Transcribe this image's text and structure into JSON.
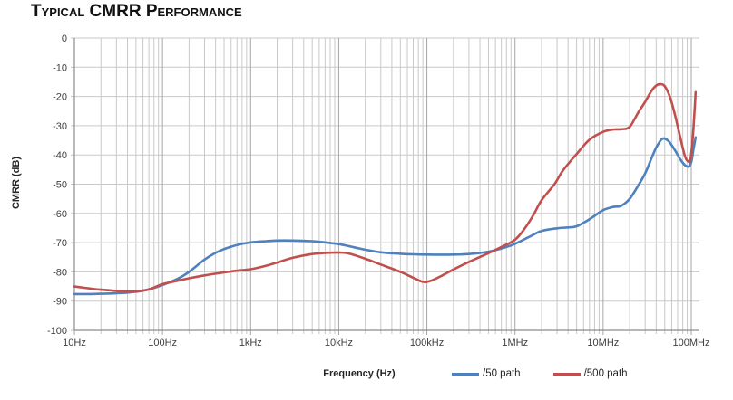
{
  "title": "Typical CMRR Performance",
  "colors": {
    "background": "#ffffff",
    "grid_major_x": "#a6a6a6",
    "grid_minor_x": "#c9c9c9",
    "grid_y": "#c9c9c9",
    "axis": "#8c8c8c",
    "series_blue": "#4f81bd",
    "series_red": "#c0504d"
  },
  "chart_data": {
    "type": "line",
    "title": "Typical CMRR Performance",
    "xlabel": "Frequency (Hz)",
    "ylabel": "CMRR (dB)",
    "x_scale": "log",
    "x_range_hz": [
      10,
      100000000
    ],
    "ylim": [
      -100,
      0
    ],
    "grid": "major+minor vertical (log decades), major horizontal every 10 dB",
    "legend_position": "bottom",
    "x_ticks": [
      "10Hz",
      "100Hz",
      "1kHz",
      "10kHz",
      "100kHz",
      "1MHz",
      "10MHz",
      "100MHz"
    ],
    "y_ticks": [
      0,
      -10,
      -20,
      -30,
      -40,
      -50,
      -60,
      -70,
      -80,
      -90,
      -100
    ],
    "series": [
      {
        "name": "/50 path",
        "color": "#4f81bd",
        "points": [
          [
            10,
            -87.6
          ],
          [
            15,
            -87.6
          ],
          [
            20,
            -87.5
          ],
          [
            30,
            -87.3
          ],
          [
            40,
            -87.1
          ],
          [
            50,
            -86.8
          ],
          [
            70,
            -86
          ],
          [
            100,
            -84.5
          ],
          [
            150,
            -82.3
          ],
          [
            200,
            -80
          ],
          [
            300,
            -75.8
          ],
          [
            400,
            -73.5
          ],
          [
            500,
            -72.2
          ],
          [
            700,
            -70.8
          ],
          [
            1000,
            -69.9
          ],
          [
            1500,
            -69.5
          ],
          [
            2000,
            -69.3
          ],
          [
            3000,
            -69.3
          ],
          [
            5000,
            -69.5
          ],
          [
            7000,
            -69.9
          ],
          [
            10000,
            -70.5
          ],
          [
            15000,
            -71.6
          ],
          [
            20000,
            -72.4
          ],
          [
            30000,
            -73.3
          ],
          [
            50000,
            -73.8
          ],
          [
            70000,
            -74
          ],
          [
            100000,
            -74.1
          ],
          [
            200000,
            -74.1
          ],
          [
            300000,
            -73.9
          ],
          [
            500000,
            -73.1
          ],
          [
            700000,
            -72
          ],
          [
            1000000,
            -70.4
          ],
          [
            1500000,
            -67.8
          ],
          [
            2000000,
            -66
          ],
          [
            3000000,
            -65.1
          ],
          [
            4000000,
            -64.8
          ],
          [
            5000000,
            -64.4
          ],
          [
            7000000,
            -62
          ],
          [
            10000000,
            -58.9
          ],
          [
            13000000,
            -57.8
          ],
          [
            16000000,
            -57.4
          ],
          [
            20000000,
            -55
          ],
          [
            25000000,
            -50.5
          ],
          [
            30000000,
            -46.3
          ],
          [
            35000000,
            -41.5
          ],
          [
            40000000,
            -37.5
          ],
          [
            47000000,
            -34.5
          ],
          [
            55000000,
            -35.2
          ],
          [
            65000000,
            -38.3
          ],
          [
            75000000,
            -41.5
          ],
          [
            85000000,
            -43.5
          ],
          [
            93000000,
            -44
          ],
          [
            100000000,
            -42.5
          ],
          [
            106000000,
            -38
          ],
          [
            112000000,
            -34
          ]
        ]
      },
      {
        "name": "/500 path",
        "color": "#c0504d",
        "points": [
          [
            10,
            -85
          ],
          [
            15,
            -85.7
          ],
          [
            20,
            -86.1
          ],
          [
            30,
            -86.5
          ],
          [
            40,
            -86.7
          ],
          [
            50,
            -86.7
          ],
          [
            70,
            -86
          ],
          [
            100,
            -84.2
          ],
          [
            150,
            -83
          ],
          [
            200,
            -82.2
          ],
          [
            300,
            -81.2
          ],
          [
            500,
            -80.2
          ],
          [
            700,
            -79.6
          ],
          [
            1000,
            -79.1
          ],
          [
            1500,
            -77.9
          ],
          [
            2000,
            -76.8
          ],
          [
            3000,
            -75.2
          ],
          [
            5000,
            -73.9
          ],
          [
            7000,
            -73.5
          ],
          [
            10000,
            -73.4
          ],
          [
            13000,
            -73.7
          ],
          [
            20000,
            -75.5
          ],
          [
            30000,
            -77.5
          ],
          [
            50000,
            -80
          ],
          [
            70000,
            -82
          ],
          [
            90000,
            -83.4
          ],
          [
            110000,
            -83.1
          ],
          [
            150000,
            -81.2
          ],
          [
            200000,
            -79.2
          ],
          [
            300000,
            -76.6
          ],
          [
            500000,
            -73.6
          ],
          [
            700000,
            -71.5
          ],
          [
            1000000,
            -69
          ],
          [
            1300000,
            -65
          ],
          [
            1600000,
            -60.8
          ],
          [
            2000000,
            -55.5
          ],
          [
            2800000,
            -50
          ],
          [
            3500000,
            -45.3
          ],
          [
            5000000,
            -39.7
          ],
          [
            7000000,
            -34.8
          ],
          [
            10000000,
            -32.1
          ],
          [
            13000000,
            -31.3
          ],
          [
            16000000,
            -31.2
          ],
          [
            20000000,
            -30.4
          ],
          [
            25000000,
            -25.5
          ],
          [
            30000000,
            -21.8
          ],
          [
            35000000,
            -18.3
          ],
          [
            40000000,
            -16.3
          ],
          [
            45000000,
            -15.8
          ],
          [
            50000000,
            -16.5
          ],
          [
            57000000,
            -20
          ],
          [
            65000000,
            -26
          ],
          [
            75000000,
            -34
          ],
          [
            85000000,
            -40.5
          ],
          [
            92000000,
            -42.2
          ],
          [
            98000000,
            -41.5
          ],
          [
            104000000,
            -34
          ],
          [
            109000000,
            -25
          ],
          [
            112000000,
            -18.5
          ]
        ]
      }
    ]
  }
}
